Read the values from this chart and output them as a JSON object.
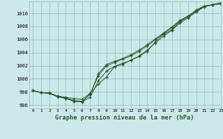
{
  "title": "Graphe pression niveau de la mer (hPa)",
  "background_color": "#cce8eb",
  "plot_bg_color": "#cce8eb",
  "grid_color": "#99bbbb",
  "line_color": "#2d5a2d",
  "marker_color": "#2d5a2d",
  "xlim": [
    -0.5,
    23
  ],
  "ylim": [
    995.5,
    1011.8
  ],
  "yticks": [
    996,
    998,
    1000,
    1002,
    1004,
    1006,
    1008,
    1010
  ],
  "xticks": [
    0,
    1,
    2,
    3,
    4,
    5,
    6,
    7,
    8,
    9,
    10,
    11,
    12,
    13,
    14,
    15,
    16,
    17,
    18,
    19,
    20,
    21,
    22,
    23
  ],
  "series": [
    [
      998.2,
      997.9,
      997.8,
      997.4,
      997.2,
      997.0,
      996.9,
      997.8,
      999.2,
      1000.3,
      1001.9,
      1002.2,
      1002.9,
      1003.4,
      1004.2,
      1005.7,
      1006.8,
      1007.5,
      1008.7,
      1009.5,
      1010.5,
      1011.1,
      1011.3,
      1011.4
    ],
    [
      998.2,
      997.9,
      997.8,
      997.3,
      997.1,
      996.6,
      996.5,
      997.2,
      999.7,
      1001.2,
      1001.9,
      1002.4,
      1002.8,
      1003.5,
      1004.4,
      1005.5,
      1006.5,
      1007.4,
      1008.5,
      1009.3,
      1010.2,
      1011.0,
      1011.3,
      1011.5
    ],
    [
      998.2,
      997.9,
      997.8,
      997.3,
      997.0,
      996.6,
      996.5,
      997.7,
      1000.5,
      1002.0,
      1002.5,
      1003.0,
      1003.5,
      1004.2,
      1005.0,
      1006.0,
      1006.9,
      1007.8,
      1008.8,
      1009.5,
      1010.3,
      1011.0,
      1011.3,
      1011.5
    ],
    [
      998.2,
      997.9,
      997.9,
      997.3,
      997.1,
      996.7,
      996.6,
      997.6,
      1000.8,
      1002.2,
      1002.7,
      1003.1,
      1003.7,
      1004.4,
      1005.2,
      1006.1,
      1007.0,
      1007.9,
      1008.9,
      1009.6,
      1010.4,
      1011.1,
      1011.3,
      1011.6
    ]
  ]
}
